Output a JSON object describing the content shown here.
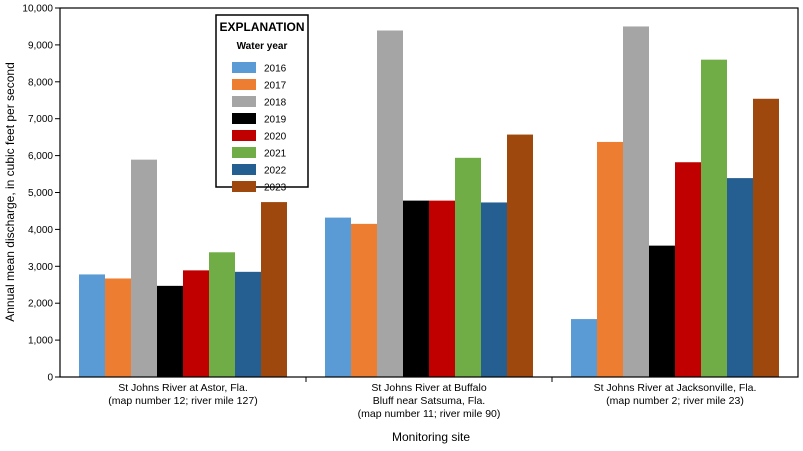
{
  "chart_data": {
    "type": "bar",
    "xlabel": "Monitoring site",
    "ylabel": "Annual mean discharge, in cubic feet per second",
    "ylim": [
      0,
      10000
    ],
    "yticks": [
      0,
      1000,
      2000,
      3000,
      4000,
      5000,
      6000,
      7000,
      8000,
      9000,
      10000
    ],
    "ytick_labels": [
      "0",
      "1,000",
      "2,000",
      "3,000",
      "4,000",
      "5,000",
      "6,000",
      "7,000",
      "8,000",
      "9,000",
      "10,000"
    ],
    "grid": false,
    "legend": {
      "title": "EXPLANATION",
      "subtitle": "Water year",
      "placement": "top-left"
    },
    "categories": [
      [
        "St Johns River at Astor, Fla.",
        "(map number 12; river mile 127)"
      ],
      [
        "St Johns River at Buffalo",
        "Bluff near Satsuma, Fla.",
        "(map number 11; river mile 90)"
      ],
      [
        "St Johns River at Jacksonville, Fla.",
        "(map number 2; river mile 23)"
      ]
    ],
    "series": [
      {
        "name": "2016",
        "color": "#5b9bd5",
        "values": [
          2780,
          4320,
          1570
        ]
      },
      {
        "name": "2017",
        "color": "#ed7d31",
        "values": [
          2670,
          4150,
          6370
        ]
      },
      {
        "name": "2018",
        "color": "#a5a5a5",
        "values": [
          5890,
          9390,
          9500
        ]
      },
      {
        "name": "2019",
        "color": "#000000",
        "values": [
          2470,
          4780,
          3560
        ]
      },
      {
        "name": "2020",
        "color": "#c00000",
        "values": [
          2890,
          4780,
          5820
        ]
      },
      {
        "name": "2021",
        "color": "#70ad47",
        "values": [
          3380,
          5940,
          8600
        ]
      },
      {
        "name": "2022",
        "color": "#255e91",
        "values": [
          2850,
          4730,
          5390
        ]
      },
      {
        "name": "2023",
        "color": "#9e480e",
        "values": [
          4740,
          6570,
          7540
        ]
      }
    ]
  }
}
